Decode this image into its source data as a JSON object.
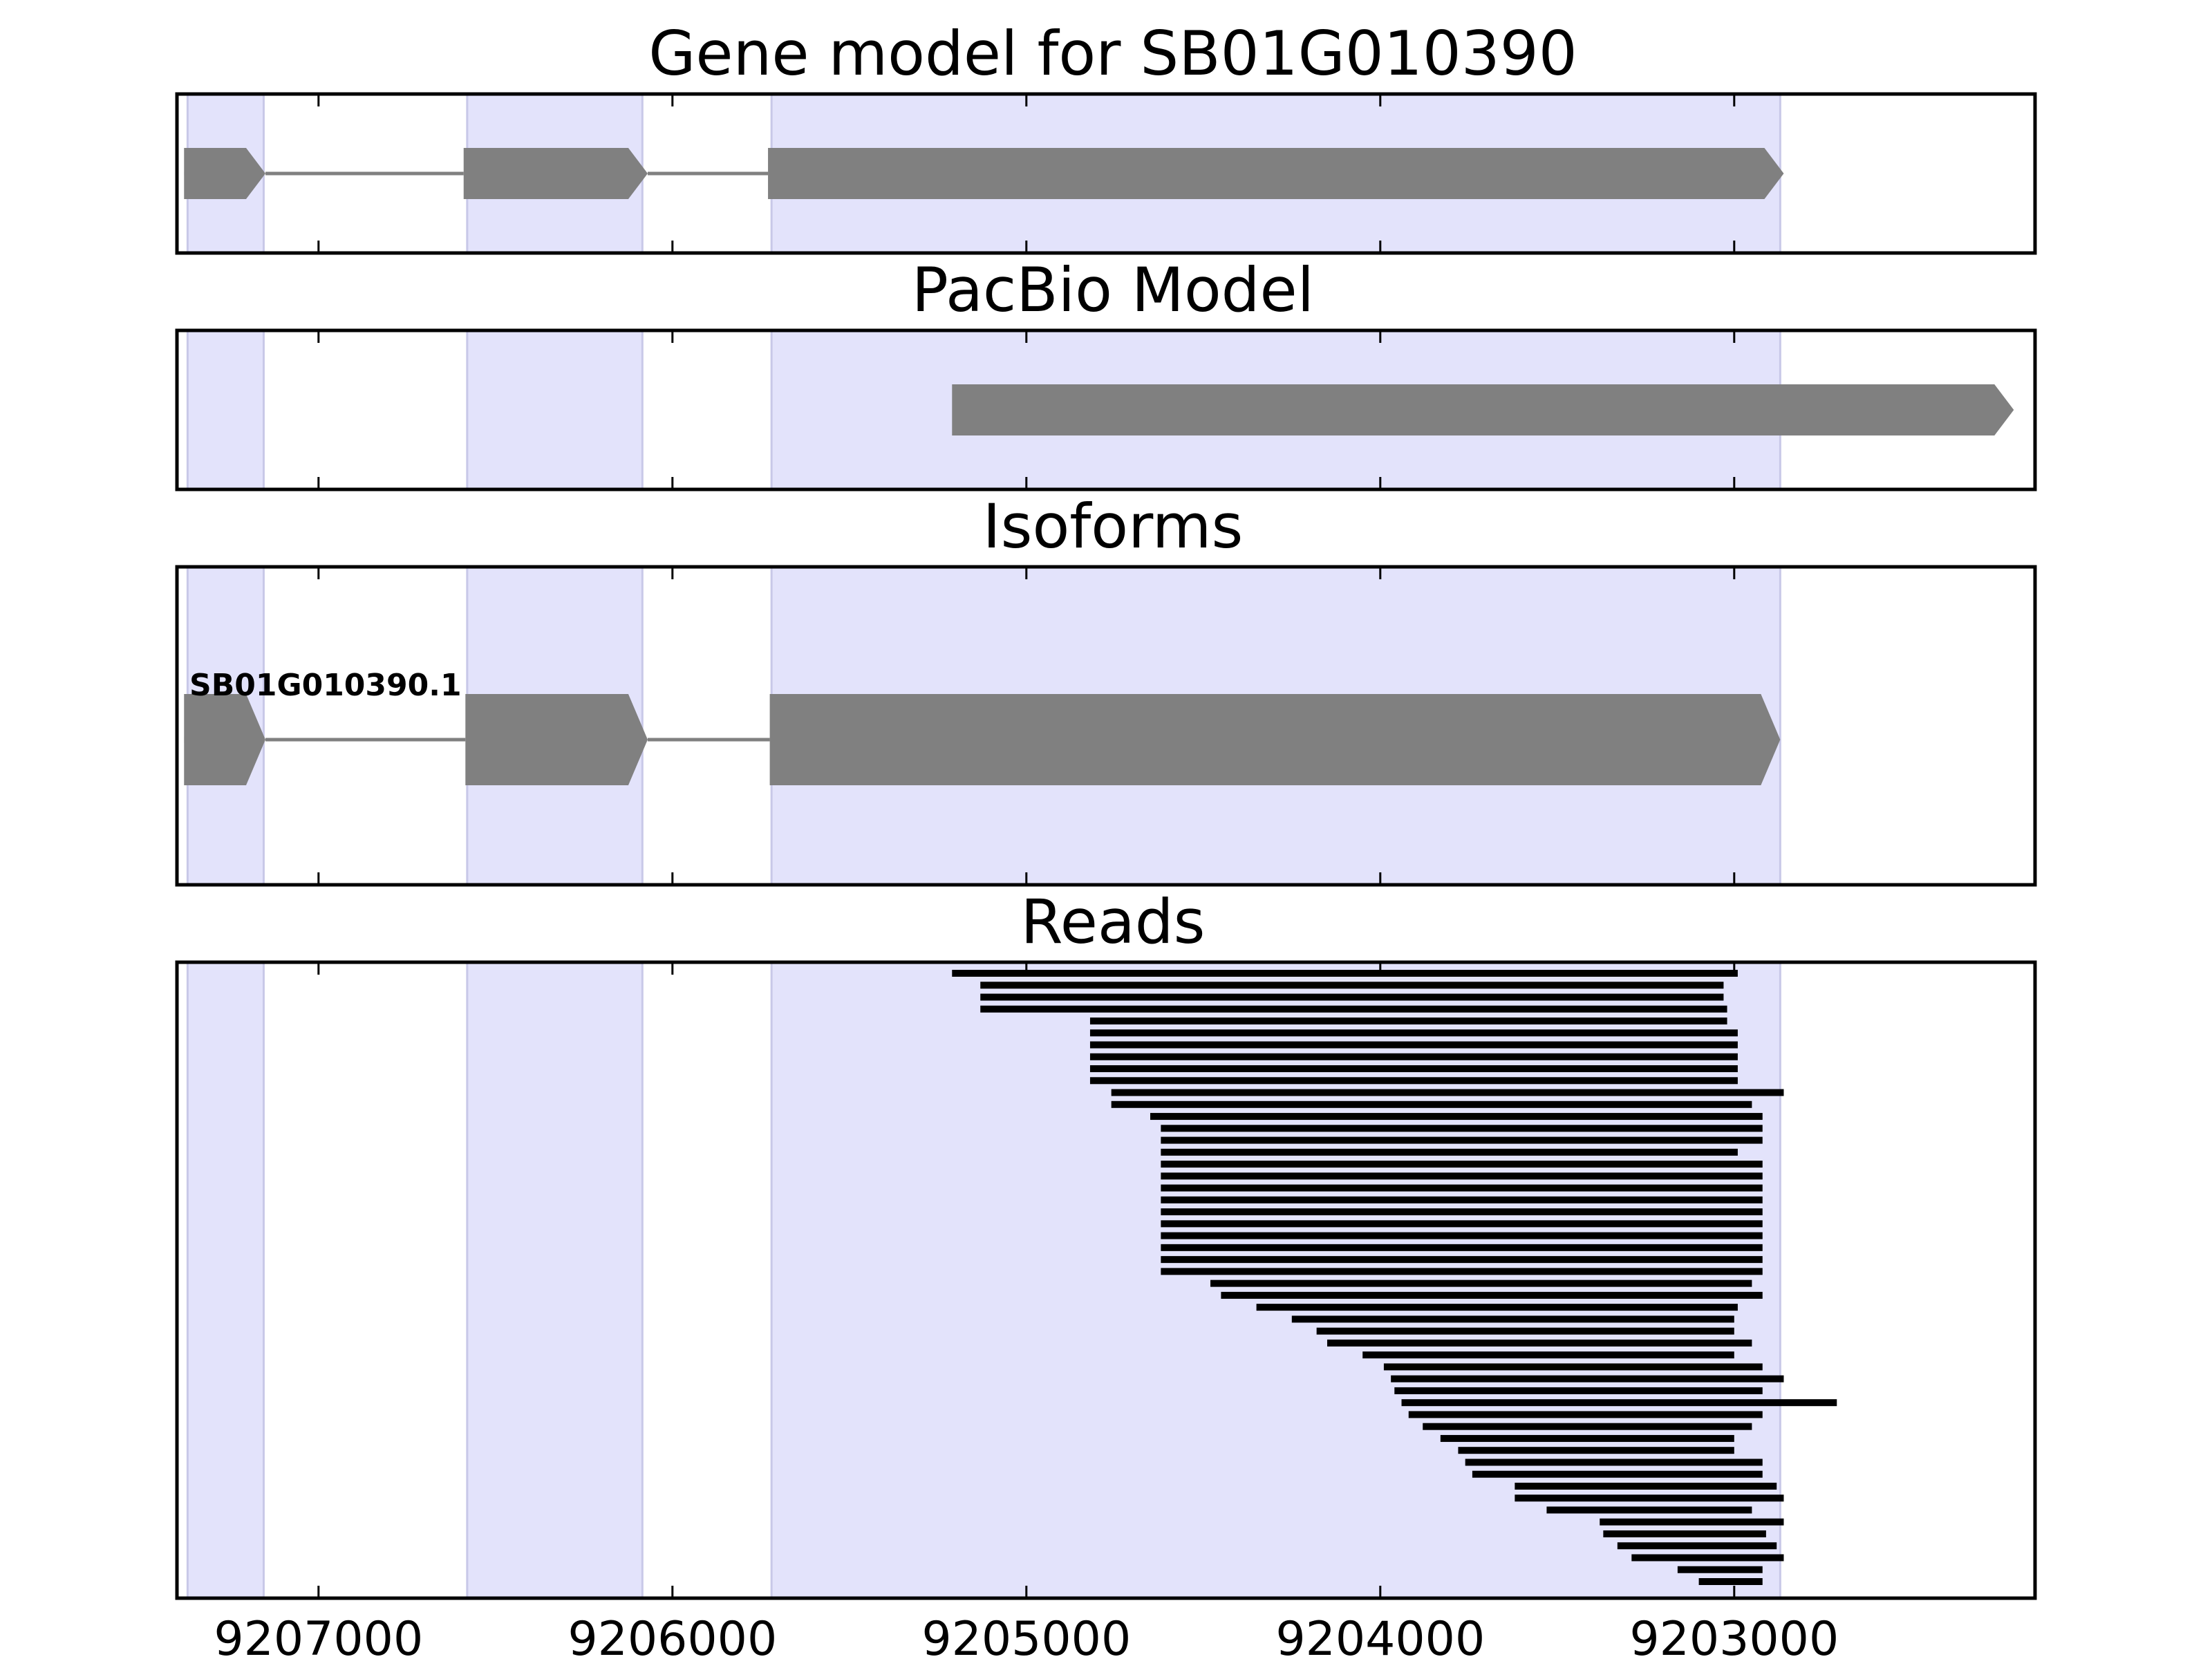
{
  "chart_data": {
    "type": "gene-model-tracks",
    "x_axis": {
      "ticks": [
        9207000,
        9206000,
        9205000,
        9204000,
        9203000
      ],
      "tick_labels": [
        "9207000",
        "9206000",
        "9205000",
        "9204000",
        "9203000"
      ],
      "xlim": [
        9207400,
        9202150
      ],
      "direction": "descending"
    },
    "colors": {
      "exon_shading": "#e3e3fb",
      "exon_shading_edge": "#c8c8e8",
      "feature": "#808080",
      "intron_line": "#808080",
      "reads": "#000000",
      "frame": "#000000"
    },
    "exon_regions": [
      [
        9207370,
        9207155
      ],
      [
        9206580,
        9206085
      ],
      [
        9205720,
        9202870
      ]
    ],
    "panels": [
      {
        "title": "Gene model for SB01G010390",
        "features": [
          {
            "start": 9207380,
            "end": 9207150,
            "strand": "-"
          },
          {
            "start": 9206590,
            "end": 9206070,
            "strand": "-"
          },
          {
            "start": 9205730,
            "end": 9202860,
            "strand": "-"
          }
        ]
      },
      {
        "title": "PacBio Model",
        "features": [
          {
            "start": 9205210,
            "end": 9202210,
            "strand": "-"
          }
        ]
      },
      {
        "title": "Isoforms",
        "isoform_label": "SB01G010390.1",
        "features": [
          {
            "start": 9207380,
            "end": 9207150,
            "strand": "-"
          },
          {
            "start": 9206585,
            "end": 9206070,
            "strand": "-"
          },
          {
            "start": 9205725,
            "end": 9202870,
            "strand": "-"
          }
        ]
      },
      {
        "title": "Reads",
        "reads": [
          [
            9205210,
            9202990
          ],
          [
            9205130,
            9203030
          ],
          [
            9205130,
            9203030
          ],
          [
            9205130,
            9203020
          ],
          [
            9204820,
            9203020
          ],
          [
            9204820,
            9202990
          ],
          [
            9204820,
            9202990
          ],
          [
            9204820,
            9202990
          ],
          [
            9204820,
            9202990
          ],
          [
            9204820,
            9202990
          ],
          [
            9204760,
            9202860
          ],
          [
            9204760,
            9202950
          ],
          [
            9204650,
            9202920
          ],
          [
            9204620,
            9202920
          ],
          [
            9204620,
            9202920
          ],
          [
            9204620,
            9202990
          ],
          [
            9204620,
            9202920
          ],
          [
            9204620,
            9202920
          ],
          [
            9204620,
            9202920
          ],
          [
            9204620,
            9202920
          ],
          [
            9204620,
            9202920
          ],
          [
            9204620,
            9202920
          ],
          [
            9204620,
            9202920
          ],
          [
            9204620,
            9202920
          ],
          [
            9204620,
            9202920
          ],
          [
            9204620,
            9202920
          ],
          [
            9204480,
            9202950
          ],
          [
            9204450,
            9202920
          ],
          [
            9204350,
            9202990
          ],
          [
            9204250,
            9203000
          ],
          [
            9204180,
            9203000
          ],
          [
            9204150,
            9202950
          ],
          [
            9204050,
            9203000
          ],
          [
            9203990,
            9202920
          ],
          [
            9203970,
            9202860
          ],
          [
            9203960,
            9202920
          ],
          [
            9203940,
            9202710
          ],
          [
            9203920,
            9202920
          ],
          [
            9203880,
            9202950
          ],
          [
            9203830,
            9203000
          ],
          [
            9203780,
            9203000
          ],
          [
            9203760,
            9202920
          ],
          [
            9203740,
            9202920
          ],
          [
            9203620,
            9202880
          ],
          [
            9203620,
            9202860
          ],
          [
            9203530,
            9202950
          ],
          [
            9203380,
            9202860
          ],
          [
            9203370,
            9202910
          ],
          [
            9203330,
            9202880
          ],
          [
            9203290,
            9202860
          ],
          [
            9203160,
            9202920
          ],
          [
            9203100,
            9202920
          ]
        ]
      }
    ]
  }
}
